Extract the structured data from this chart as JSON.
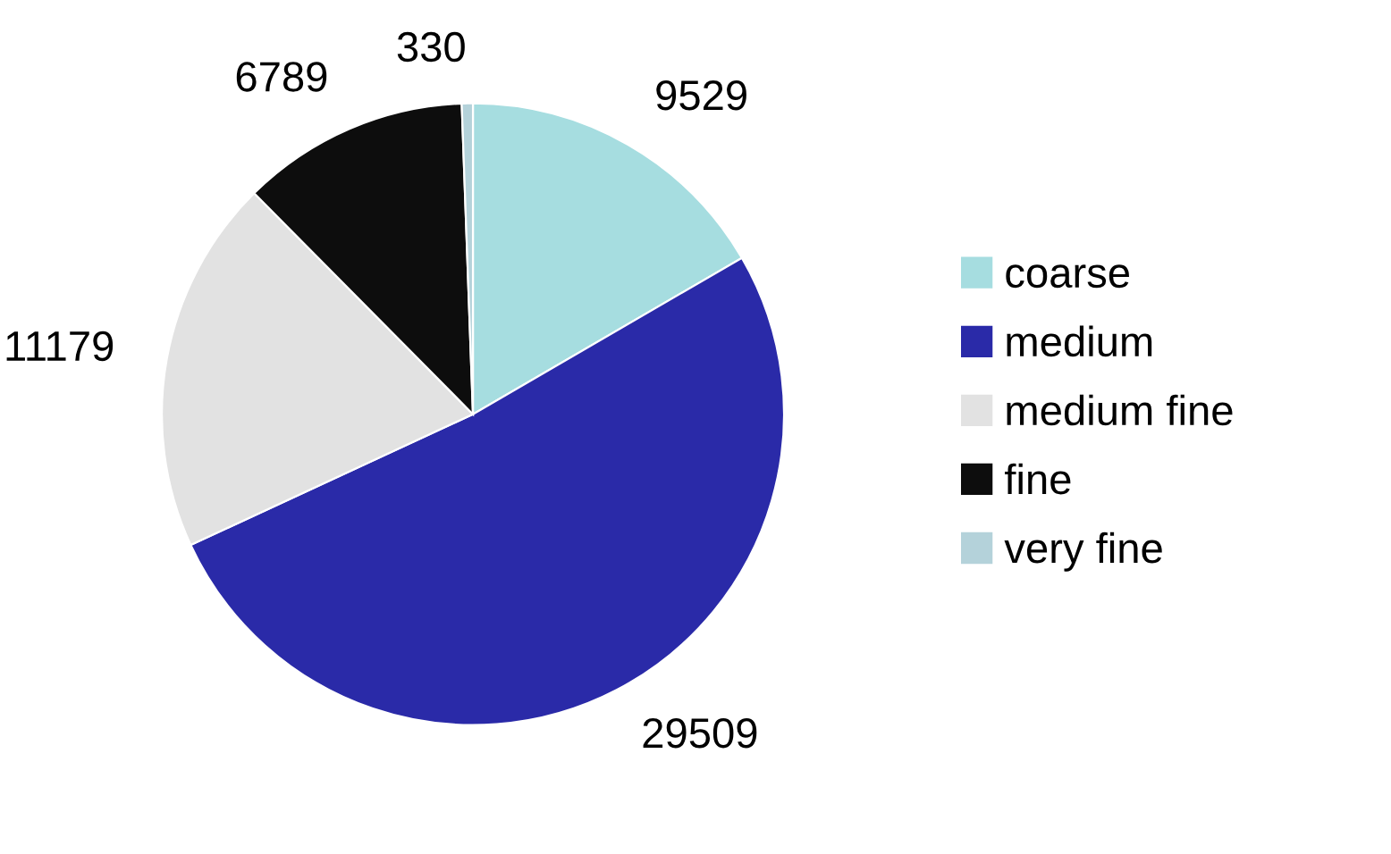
{
  "chart_data": {
    "type": "pie",
    "categories": [
      "coarse",
      "medium",
      "medium fine",
      "fine",
      "very fine"
    ],
    "values": [
      9529,
      29509,
      11179,
      6789,
      330
    ],
    "colors": [
      "#a6dde0",
      "#2a2aa8",
      "#e2e2e2",
      "#0d0d0d",
      "#b4d2da"
    ],
    "data_labels": true,
    "legend": "right"
  }
}
